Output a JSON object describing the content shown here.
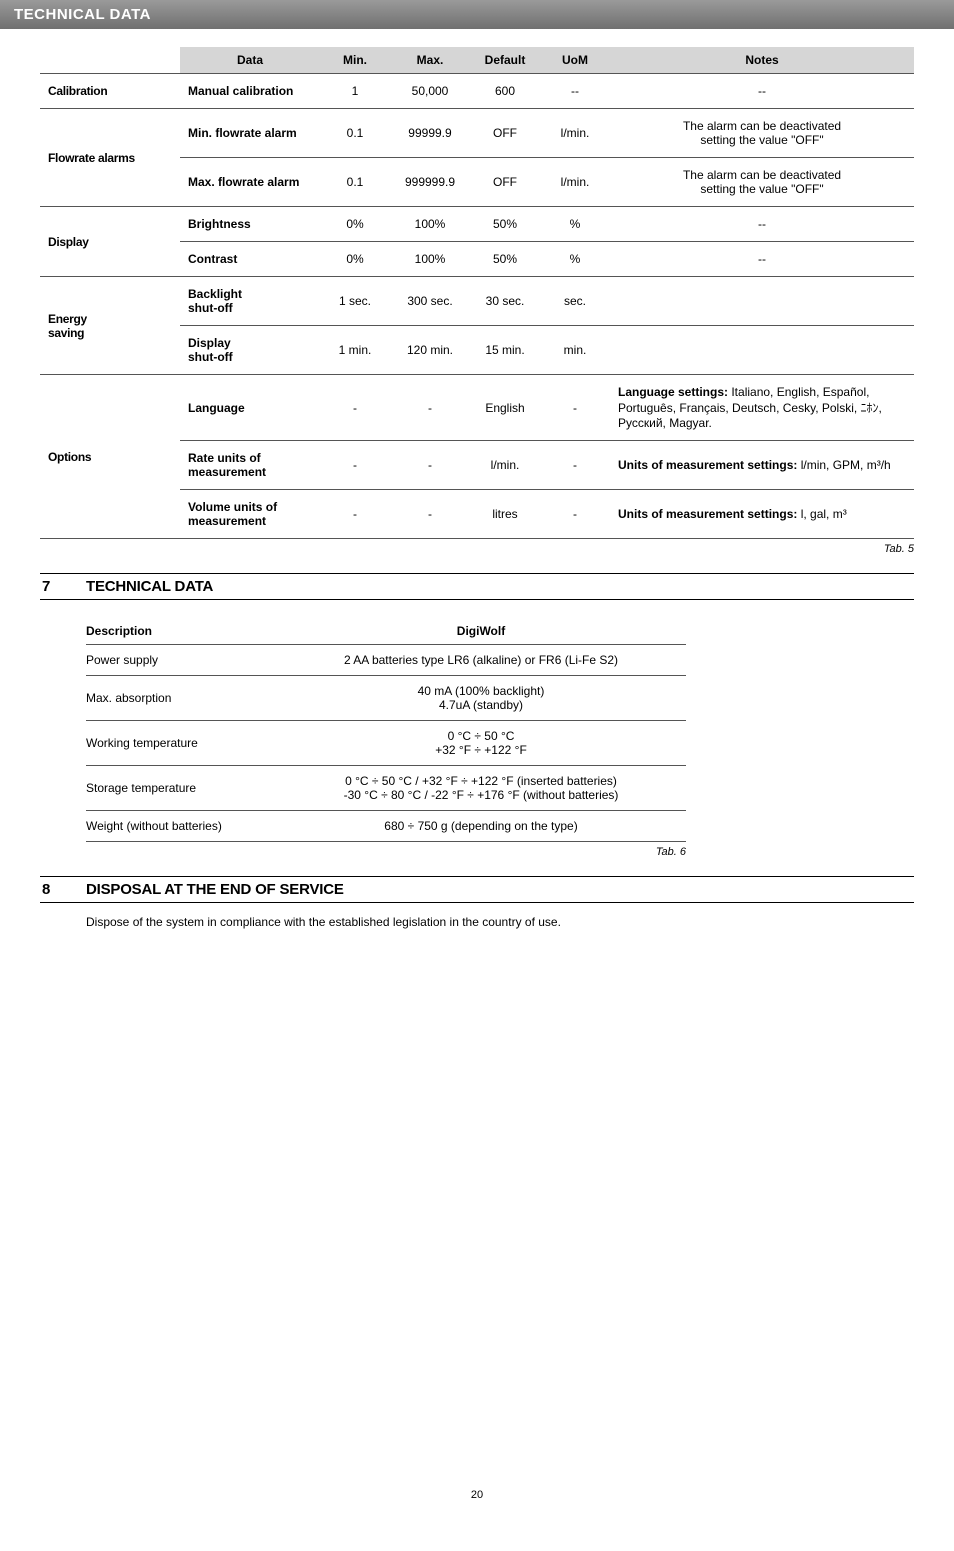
{
  "banner": "TECHNICAL DATA",
  "mainTable": {
    "headers": {
      "data": "Data",
      "min": "Min.",
      "max": "Max.",
      "def": "Default",
      "uom": "UoM",
      "notes": "Notes"
    },
    "groups": [
      {
        "label": "Calibration",
        "rows": [
          {
            "data": "Manual calibration",
            "min": "1",
            "max": "50,000",
            "def": "600",
            "uom": "--",
            "notes": "--",
            "notesAlign": "center"
          }
        ]
      },
      {
        "label": "Flowrate alarms",
        "rows": [
          {
            "data": "Min. flowrate alarm",
            "min": "0.1",
            "max": "99999.9",
            "def": "OFF",
            "uom": "l/min.",
            "notes": "The alarm can be deactivated\nsetting the value \"OFF\"",
            "notesAlign": "center"
          },
          {
            "data": "Max. flowrate alarm",
            "min": "0.1",
            "max": "999999.9",
            "def": "OFF",
            "uom": "l/min.",
            "notes": "The alarm can be deactivated\nsetting the value \"OFF\"",
            "notesAlign": "center"
          }
        ]
      },
      {
        "label": "Display",
        "rows": [
          {
            "data": "Brightness",
            "min": "0%",
            "max": "100%",
            "def": "50%",
            "uom": "%",
            "notes": "--",
            "notesAlign": "center"
          },
          {
            "data": "Contrast",
            "min": "0%",
            "max": "100%",
            "def": "50%",
            "uom": "%",
            "notes": "--",
            "notesAlign": "center"
          }
        ]
      },
      {
        "label": "Energy\nsaving",
        "rows": [
          {
            "data": "Backlight\nshut-off",
            "min": "1 sec.",
            "max": "300 sec.",
            "def": "30 sec.",
            "uom": "sec.",
            "notes": "",
            "notesAlign": "center"
          },
          {
            "data": "Display\nshut-off",
            "min": "1 min.",
            "max": "120 min.",
            "def": "15 min.",
            "uom": "min.",
            "notes": "",
            "notesAlign": "center"
          }
        ]
      },
      {
        "label": "Options",
        "rows": [
          {
            "data": "Language",
            "min": "-",
            "max": "-",
            "def": "English",
            "uom": "-",
            "notes": "<b>Language settings:</b> Italiano, English, Español, Português, Français, Deutsch, Cesky, Polski, ﾆﾎﾝ, Русский, Magyar.",
            "notesAlign": "left"
          },
          {
            "data": "Rate units of\nmeasurement",
            "min": "-",
            "max": "-",
            "def": "l/min.",
            "uom": "-",
            "notes": "<b>Units of measurement settings:</b> l/min, GPM, m³/h",
            "notesAlign": "left"
          },
          {
            "data": "Volume units of\nmeasurement",
            "min": "-",
            "max": "-",
            "def": "litres",
            "uom": "-",
            "notes": "<b>Units of measurement settings:</b> l, gal, m³",
            "notesAlign": "left"
          }
        ]
      }
    ],
    "tabref": "Tab. 5"
  },
  "section7": {
    "num": "7",
    "title": "TECHNICAL DATA"
  },
  "descTable": {
    "headers": {
      "desc": "Description",
      "val": "DigiWolf"
    },
    "rows": [
      {
        "desc": "Power supply",
        "val": "2 AA batteries type LR6 (alkaline) or FR6 (Li-Fe S2)"
      },
      {
        "desc": "Max. absorption",
        "val": "40 mA (100% backlight)\n4.7uA (standby)"
      },
      {
        "desc": "Working temperature",
        "val": "0 °C ÷ 50 °C\n+32 °F ÷ +122 °F"
      },
      {
        "desc": "Storage temperature",
        "val": "0 °C ÷ 50 °C / +32 °F ÷ +122 °F (inserted batteries)\n-30 °C ÷ 80 °C / -22 °F ÷ +176 °F (without batteries)"
      },
      {
        "desc": "Weight (without batteries)",
        "val": "680 ÷ 750 g (depending on the type)"
      }
    ],
    "tabref": "Tab. 6"
  },
  "section8": {
    "num": "8",
    "title": "DISPOSAL AT THE END OF SERVICE"
  },
  "disposalText": "Dispose of the system in compliance with the established legislation in the country of use.",
  "pageNum": "20"
}
